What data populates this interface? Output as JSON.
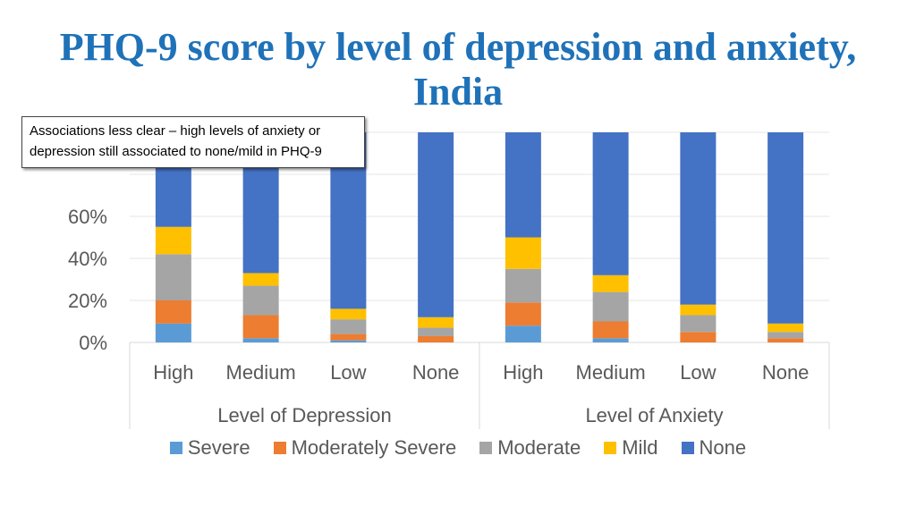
{
  "page": {
    "title_line1": "PHQ-9 score by level of depression and anxiety,",
    "title_line2": "India",
    "annotation": "Associations less clear – high levels of anxiety or depression still associated to none/mild  in PHQ-9"
  },
  "chart_data": {
    "type": "bar",
    "stacked": true,
    "percent": true,
    "title": "PHQ-9 score by level of depression and anxiety, India",
    "ylim": [
      0,
      100
    ],
    "yticks": [
      0,
      20,
      40,
      60
    ],
    "ytick_labels": [
      "0%",
      "20%",
      "40%",
      "60%"
    ],
    "groups": [
      {
        "label": "Level of Depression",
        "categories": [
          "High",
          "Medium",
          "Low",
          "None"
        ]
      },
      {
        "label": "Level of Anxiety",
        "categories": [
          "High",
          "Medium",
          "Low",
          "None"
        ]
      }
    ],
    "categories": [
      "High",
      "Medium",
      "Low",
      "None",
      "High",
      "Medium",
      "Low",
      "None"
    ],
    "series": [
      {
        "name": "Severe",
        "color": "#5b9bd5",
        "values": [
          9,
          2,
          1,
          0,
          8,
          2,
          0,
          0
        ]
      },
      {
        "name": "Moderately Severe",
        "color": "#ed7d31",
        "values": [
          11,
          11,
          3,
          3,
          11,
          8,
          5,
          2
        ]
      },
      {
        "name": "Moderate",
        "color": "#a5a5a5",
        "values": [
          22,
          14,
          7,
          4,
          16,
          14,
          8,
          3
        ]
      },
      {
        "name": "Mild",
        "color": "#ffc000",
        "values": [
          13,
          6,
          5,
          5,
          15,
          8,
          5,
          4
        ]
      },
      {
        "name": "None",
        "color": "#4472c4",
        "values": [
          45,
          67,
          84,
          88,
          50,
          68,
          82,
          91
        ]
      }
    ],
    "legend_position": "bottom",
    "grid": true
  }
}
